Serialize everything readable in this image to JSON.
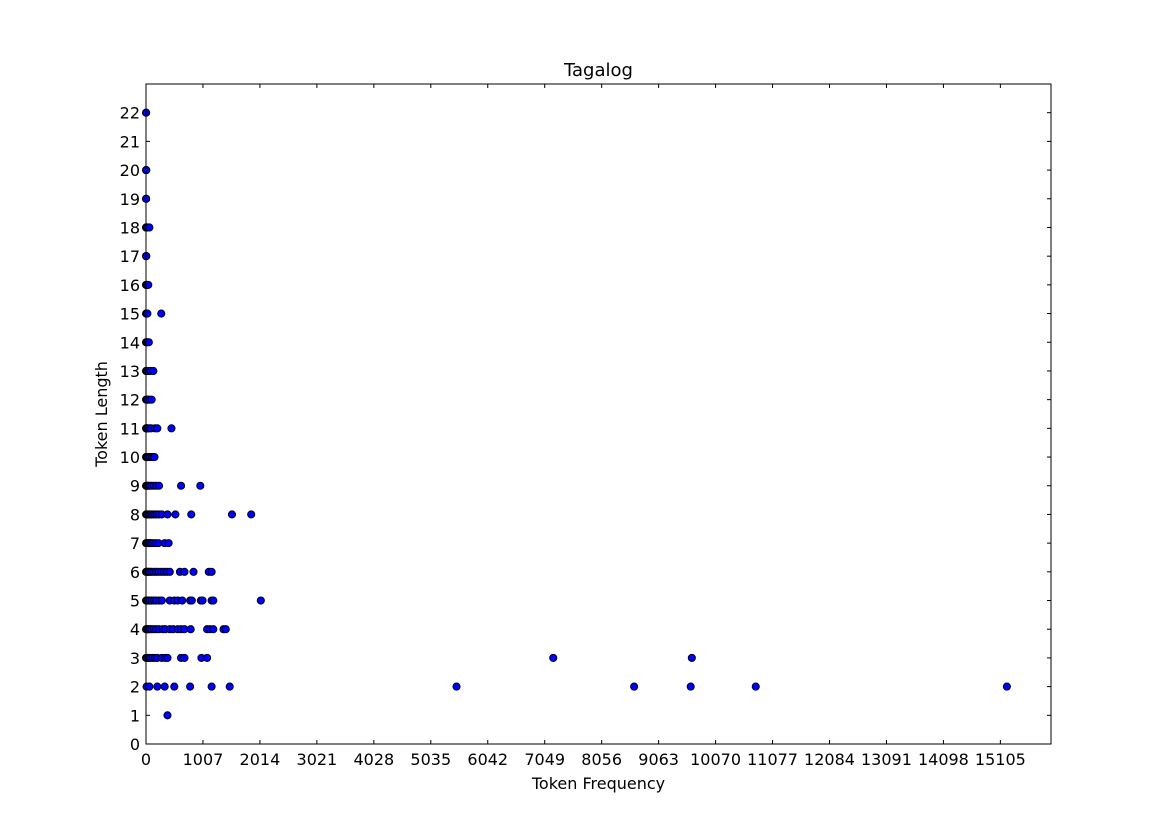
{
  "chart_data": {
    "type": "scatter",
    "title": "Tagalog",
    "xlabel": "Token Frequency",
    "ylabel": "Token Length",
    "xlim": [
      0,
      16000
    ],
    "ylim": [
      0,
      23
    ],
    "x_ticks": [
      0,
      1007,
      2014,
      3021,
      4028,
      5035,
      6042,
      7049,
      8056,
      9063,
      10070,
      11077,
      12084,
      13091,
      14098,
      15105
    ],
    "y_ticks": [
      0,
      1,
      2,
      3,
      4,
      5,
      6,
      7,
      8,
      9,
      10,
      11,
      12,
      13,
      14,
      15,
      16,
      17,
      18,
      19,
      20,
      21,
      22
    ],
    "grid": false,
    "legend": "none",
    "marker_color": "#0000ff",
    "marker_edge_color": "#000000",
    "series": [
      {
        "points": [
          [
            1,
            22
          ],
          [
            2,
            22
          ],
          [
            1,
            20
          ],
          [
            3,
            20
          ],
          [
            5,
            20
          ],
          [
            1,
            19
          ],
          [
            3,
            19
          ],
          [
            1,
            18
          ],
          [
            3,
            18
          ],
          [
            6,
            18
          ],
          [
            10,
            18
          ],
          [
            15,
            18
          ],
          [
            30,
            18
          ],
          [
            60,
            18
          ],
          [
            1,
            17
          ],
          [
            2,
            17
          ],
          [
            5,
            17
          ],
          [
            1,
            16
          ],
          [
            3,
            16
          ],
          [
            8,
            16
          ],
          [
            20,
            16
          ],
          [
            40,
            16
          ],
          [
            1,
            15
          ],
          [
            5,
            15
          ],
          [
            15,
            15
          ],
          [
            25,
            15
          ],
          [
            270,
            15
          ],
          [
            1,
            14
          ],
          [
            4,
            14
          ],
          [
            12,
            14
          ],
          [
            30,
            14
          ],
          [
            50,
            14
          ],
          [
            1,
            13
          ],
          [
            5,
            13
          ],
          [
            15,
            13
          ],
          [
            40,
            13
          ],
          [
            80,
            13
          ],
          [
            130,
            13
          ],
          [
            1,
            12
          ],
          [
            5,
            12
          ],
          [
            15,
            12
          ],
          [
            30,
            12
          ],
          [
            60,
            12
          ],
          [
            100,
            12
          ],
          [
            1,
            11
          ],
          [
            5,
            11
          ],
          [
            12,
            11
          ],
          [
            25,
            11
          ],
          [
            50,
            11
          ],
          [
            90,
            11
          ],
          [
            160,
            11
          ],
          [
            200,
            11
          ],
          [
            450,
            11
          ],
          [
            1,
            10
          ],
          [
            5,
            10
          ],
          [
            10,
            10
          ],
          [
            20,
            10
          ],
          [
            40,
            10
          ],
          [
            70,
            10
          ],
          [
            100,
            10
          ],
          [
            130,
            10
          ],
          [
            150,
            10
          ],
          [
            1,
            9
          ],
          [
            5,
            9
          ],
          [
            12,
            9
          ],
          [
            25,
            9
          ],
          [
            45,
            9
          ],
          [
            70,
            9
          ],
          [
            100,
            9
          ],
          [
            140,
            9
          ],
          [
            180,
            9
          ],
          [
            230,
            9
          ],
          [
            620,
            9
          ],
          [
            960,
            9
          ],
          [
            1,
            8
          ],
          [
            8,
            8
          ],
          [
            20,
            8
          ],
          [
            40,
            8
          ],
          [
            60,
            8
          ],
          [
            80,
            8
          ],
          [
            100,
            8
          ],
          [
            130,
            8
          ],
          [
            160,
            8
          ],
          [
            190,
            8
          ],
          [
            230,
            8
          ],
          [
            280,
            8
          ],
          [
            380,
            8
          ],
          [
            520,
            8
          ],
          [
            800,
            8
          ],
          [
            1520,
            8
          ],
          [
            1860,
            8
          ],
          [
            1,
            7
          ],
          [
            8,
            7
          ],
          [
            20,
            7
          ],
          [
            40,
            7
          ],
          [
            60,
            7
          ],
          [
            80,
            7
          ],
          [
            100,
            7
          ],
          [
            130,
            7
          ],
          [
            170,
            7
          ],
          [
            220,
            7
          ],
          [
            330,
            7
          ],
          [
            400,
            7
          ],
          [
            1,
            6
          ],
          [
            10,
            6
          ],
          [
            25,
            6
          ],
          [
            45,
            6
          ],
          [
            70,
            6
          ],
          [
            100,
            6
          ],
          [
            140,
            6
          ],
          [
            180,
            6
          ],
          [
            220,
            6
          ],
          [
            270,
            6
          ],
          [
            320,
            6
          ],
          [
            370,
            6
          ],
          [
            420,
            6
          ],
          [
            600,
            6
          ],
          [
            680,
            6
          ],
          [
            840,
            6
          ],
          [
            1110,
            6
          ],
          [
            1160,
            6
          ],
          [
            1,
            5
          ],
          [
            10,
            5
          ],
          [
            25,
            5
          ],
          [
            45,
            5
          ],
          [
            70,
            5
          ],
          [
            100,
            5
          ],
          [
            140,
            5
          ],
          [
            180,
            5
          ],
          [
            230,
            5
          ],
          [
            280,
            5
          ],
          [
            420,
            5
          ],
          [
            500,
            5
          ],
          [
            560,
            5
          ],
          [
            640,
            5
          ],
          [
            780,
            5
          ],
          [
            810,
            5
          ],
          [
            970,
            5
          ],
          [
            1000,
            5
          ],
          [
            1160,
            5
          ],
          [
            1190,
            5
          ],
          [
            2030,
            5
          ],
          [
            1,
            4
          ],
          [
            10,
            4
          ],
          [
            25,
            4
          ],
          [
            45,
            4
          ],
          [
            70,
            4
          ],
          [
            100,
            4
          ],
          [
            140,
            4
          ],
          [
            180,
            4
          ],
          [
            230,
            4
          ],
          [
            300,
            4
          ],
          [
            340,
            4
          ],
          [
            420,
            4
          ],
          [
            480,
            4
          ],
          [
            560,
            4
          ],
          [
            620,
            4
          ],
          [
            680,
            4
          ],
          [
            790,
            4
          ],
          [
            1080,
            4
          ],
          [
            1130,
            4
          ],
          [
            1190,
            4
          ],
          [
            1370,
            4
          ],
          [
            1410,
            4
          ],
          [
            1,
            3
          ],
          [
            10,
            3
          ],
          [
            25,
            3
          ],
          [
            50,
            3
          ],
          [
            80,
            3
          ],
          [
            120,
            3
          ],
          [
            160,
            3
          ],
          [
            200,
            3
          ],
          [
            280,
            3
          ],
          [
            340,
            3
          ],
          [
            380,
            3
          ],
          [
            620,
            3
          ],
          [
            680,
            3
          ],
          [
            980,
            3
          ],
          [
            1080,
            3
          ],
          [
            7200,
            3
          ],
          [
            9650,
            3
          ],
          [
            10,
            2
          ],
          [
            60,
            2
          ],
          [
            200,
            2
          ],
          [
            330,
            2
          ],
          [
            500,
            2
          ],
          [
            780,
            2
          ],
          [
            1160,
            2
          ],
          [
            1480,
            2
          ],
          [
            5490,
            2
          ],
          [
            8630,
            2
          ],
          [
            9630,
            2
          ],
          [
            10780,
            2
          ],
          [
            15220,
            2
          ],
          [
            380,
            1
          ]
        ]
      }
    ]
  }
}
